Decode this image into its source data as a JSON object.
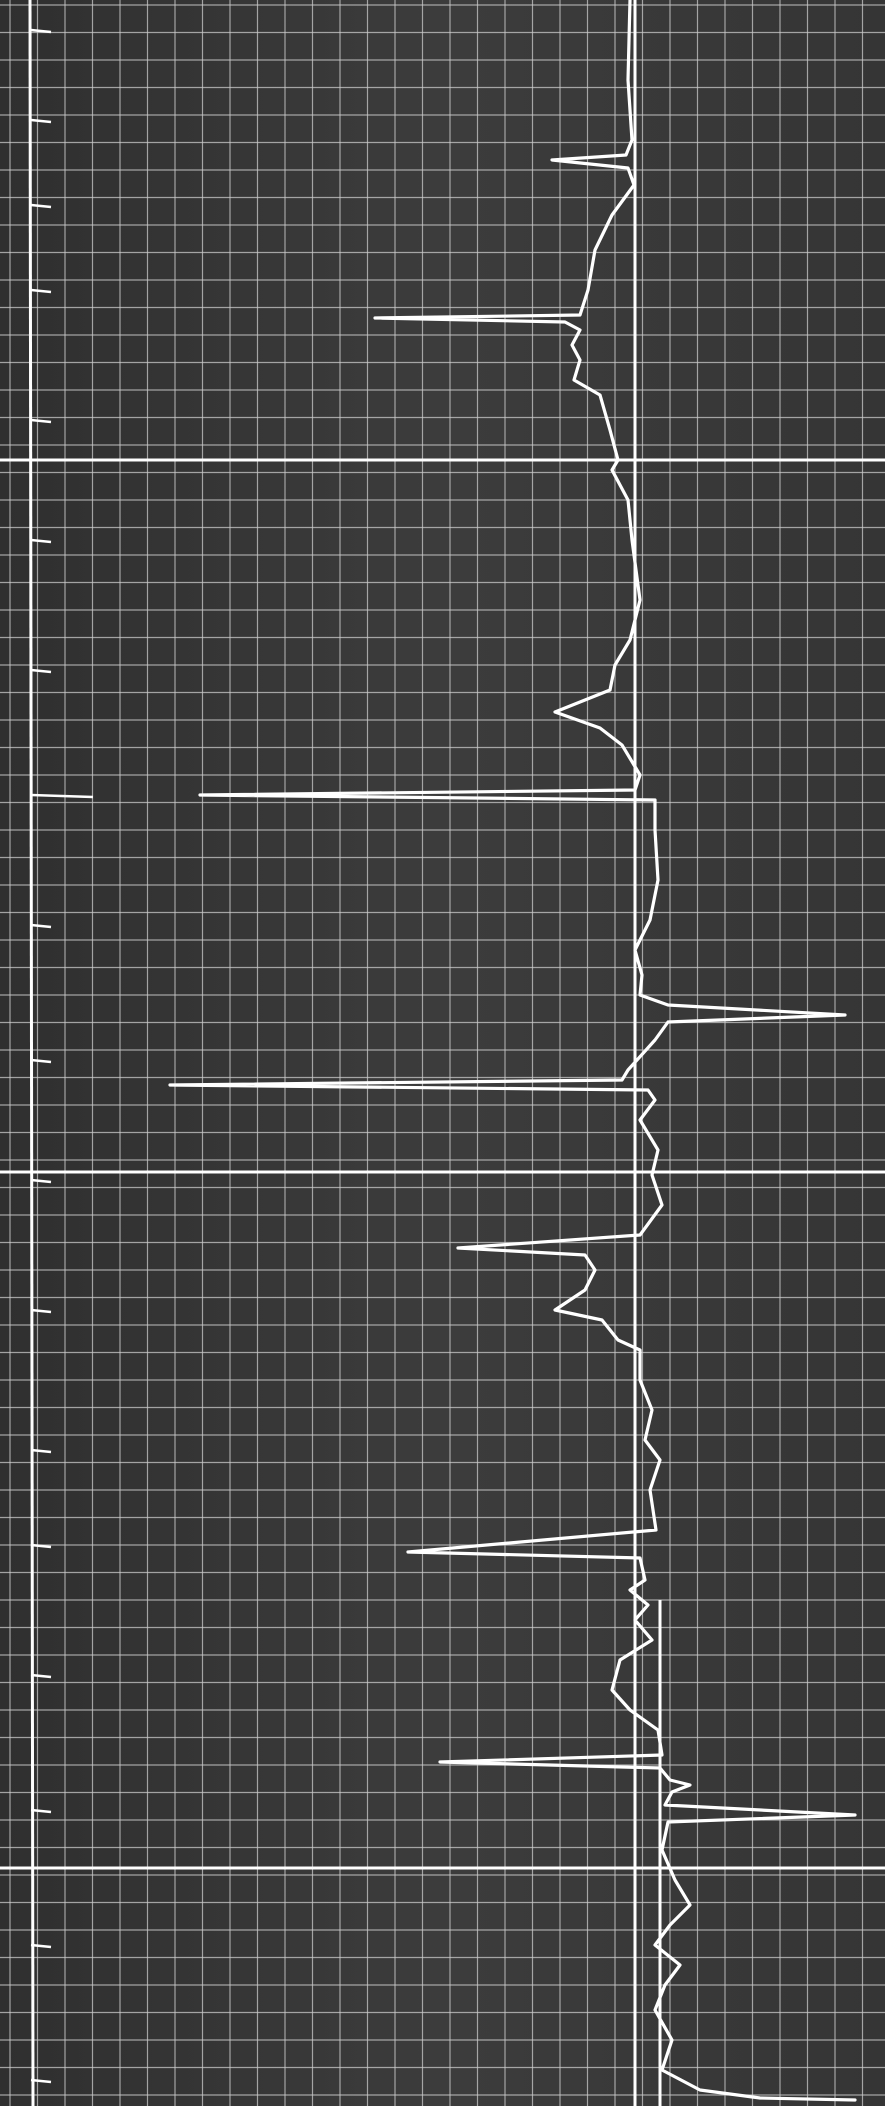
{
  "photo": {
    "subject": "ecg-strip-chart-recording",
    "colors": {
      "paper": "#3c3c3c",
      "paper_dark": "#2e2e2e",
      "grid_minor": "#c9c9c9",
      "grid_major": "#ffffff",
      "trace": "#ffffff"
    }
  }
}
